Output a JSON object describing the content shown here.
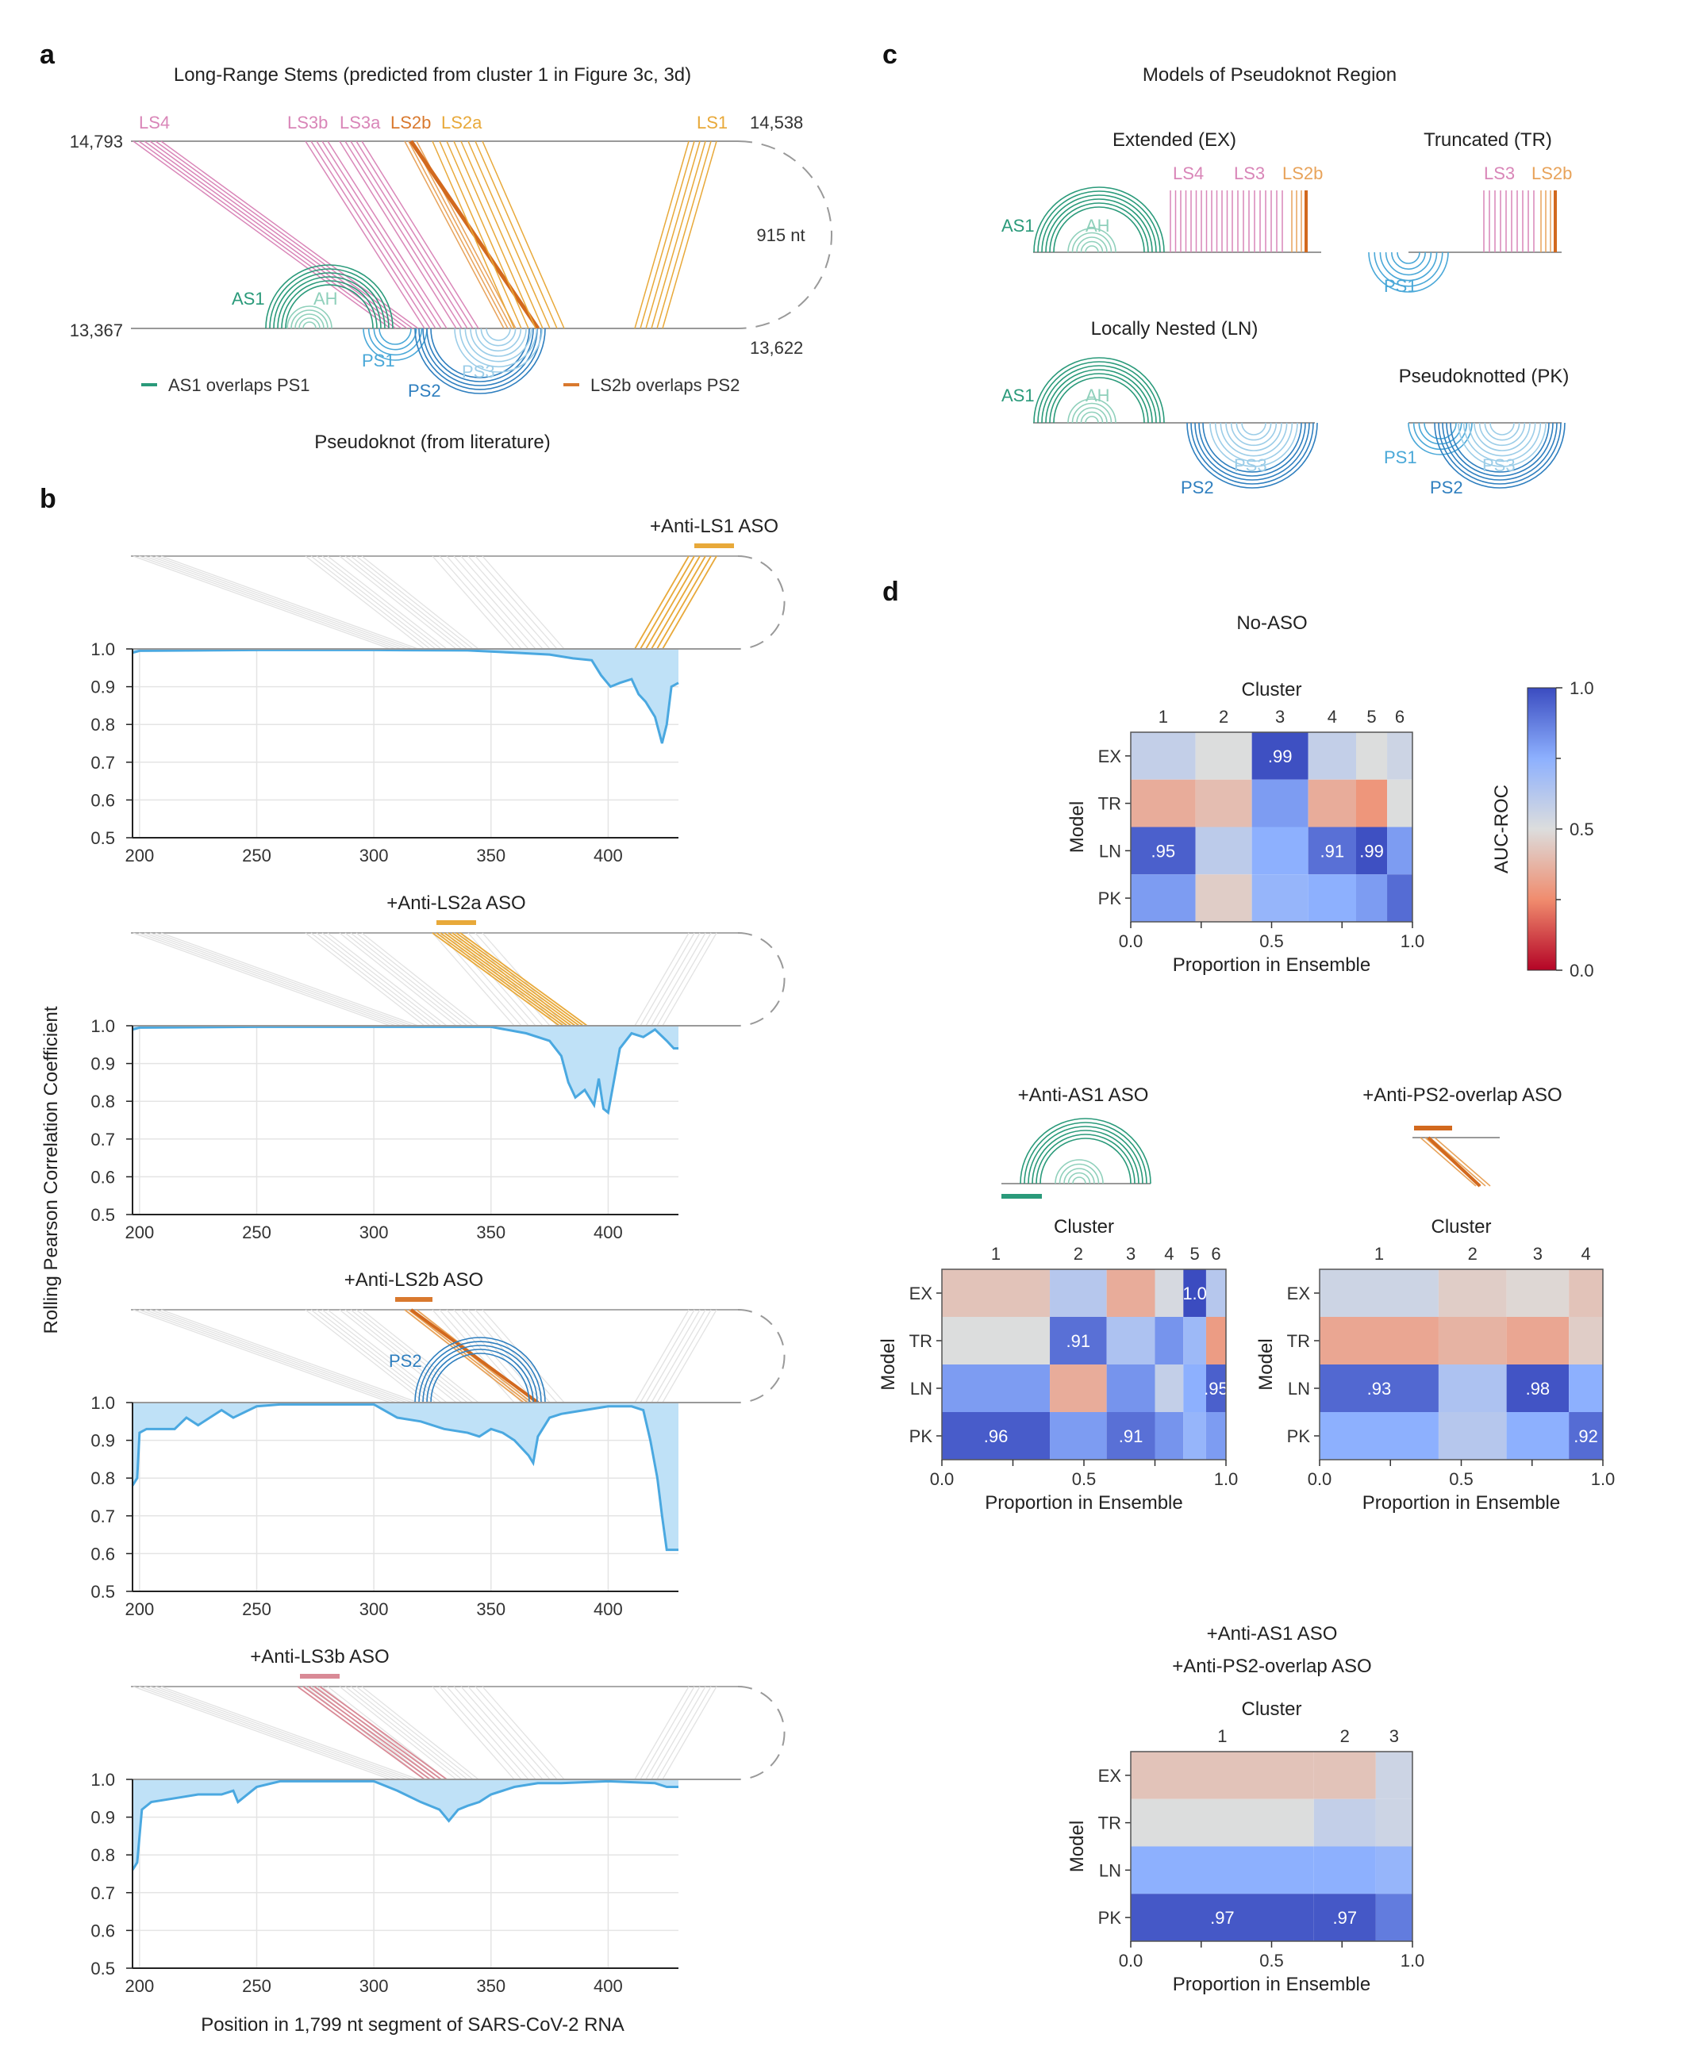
{
  "panel_a": {
    "letter": "a",
    "title": "Long-Range Stems (predicted from cluster 1 in Figure 3c, 3d)",
    "coord_top_left": "14,793",
    "coord_top_right": "14,538",
    "coord_bottom_left": "13,367",
    "coord_bottom_right": "13,622",
    "loop_length": "915 nt",
    "stem_labels": {
      "ls4": "LS4",
      "ls3b": "LS3b",
      "ls3a": "LS3a",
      "ls2b": "LS2b",
      "ls2a": "LS2a",
      "ls1": "LS1"
    },
    "arc_labels": {
      "as1": "AS1",
      "ah": "AH",
      "ps1": "PS1",
      "ps2": "PS2",
      "ps3": "PS3"
    },
    "legend_as1": "AS1 overlaps PS1",
    "legend_ls2b": "LS2b overlaps PS2",
    "caption": "Pseudoknot (from literature)"
  },
  "panel_b": {
    "letter": "b",
    "ylabel": "Rolling Pearson Correlation Coefficient",
    "xlabel": "Position in 1,799 nt segment of SARS-CoV-2 RNA",
    "ps2_label": "PS2",
    "charts": [
      {
        "title": "+Anti-LS1 ASO"
      },
      {
        "title": "+Anti-LS2a ASO"
      },
      {
        "title": "+Anti-LS2b ASO"
      },
      {
        "title": "+Anti-LS3b ASO"
      }
    ]
  },
  "panel_c": {
    "letter": "c",
    "title": "Models of Pseudoknot Region",
    "ex": {
      "title": "Extended (EX)",
      "labels": [
        "AS1",
        "AH",
        "LS4",
        "LS3",
        "LS2b"
      ]
    },
    "tr": {
      "title": "Truncated (TR)",
      "labels": [
        "PS1",
        "LS3",
        "LS2b"
      ]
    },
    "ln": {
      "title": "Locally Nested (LN)",
      "labels": [
        "AS1",
        "AH",
        "PS2",
        "PS3"
      ]
    },
    "pk": {
      "title": "Pseudoknotted (PK)",
      "labels": [
        "PS1",
        "PS2",
        "PS3"
      ]
    }
  },
  "panel_d": {
    "letter": "d",
    "cluster_label": "Cluster",
    "model_label": "Model",
    "prop_label": "Proportion in Ensemble",
    "colorbar": {
      "label": "AUC-ROC",
      "ticks": [
        "1.0",
        "0.5",
        "0.0"
      ]
    },
    "titles": {
      "no_aso": "No-ASO",
      "as1": "+Anti-AS1 ASO",
      "ps2": "+Anti-PS2-overlap ASO",
      "both_line1": "+Anti-AS1 ASO",
      "both_line2": "+Anti-PS2-overlap ASO"
    }
  },
  "chart_data": [
    {
      "type": "area",
      "title": "+Anti-LS1 ASO",
      "xlabel": "Position in 1,799 nt segment of SARS-CoV-2 RNA",
      "ylabel": "Rolling Pearson Correlation Coefficient",
      "xlim": [
        197,
        430
      ],
      "ylim": [
        0.5,
        1.0
      ],
      "x_ticks": [
        200,
        250,
        300,
        350,
        400
      ],
      "y_ticks": [
        0.5,
        0.6,
        0.7,
        0.8,
        0.9,
        1.0
      ],
      "grid": true,
      "x": [
        197,
        200,
        250,
        300,
        340,
        360,
        375,
        385,
        393,
        397,
        401,
        405,
        410,
        413,
        416,
        420,
        423,
        425,
        427,
        430
      ],
      "y": [
        0.99,
        0.995,
        0.997,
        0.997,
        0.996,
        0.99,
        0.985,
        0.975,
        0.97,
        0.93,
        0.9,
        0.91,
        0.92,
        0.88,
        0.86,
        0.82,
        0.75,
        0.8,
        0.9,
        0.91
      ]
    },
    {
      "type": "area",
      "title": "+Anti-LS2a ASO",
      "xlabel": "Position in 1,799 nt segment of SARS-CoV-2 RNA",
      "ylabel": "Rolling Pearson Correlation Coefficient",
      "xlim": [
        197,
        430
      ],
      "ylim": [
        0.5,
        1.0
      ],
      "x_ticks": [
        200,
        250,
        300,
        350,
        400
      ],
      "y_ticks": [
        0.5,
        0.6,
        0.7,
        0.8,
        0.9,
        1.0
      ],
      "grid": true,
      "x": [
        197,
        200,
        250,
        300,
        350,
        365,
        375,
        380,
        383,
        386,
        390,
        394,
        396,
        398,
        400,
        405,
        410,
        415,
        420,
        425,
        428,
        430
      ],
      "y": [
        0.99,
        0.995,
        0.997,
        0.997,
        0.997,
        0.98,
        0.96,
        0.92,
        0.85,
        0.81,
        0.83,
        0.79,
        0.86,
        0.78,
        0.77,
        0.94,
        0.98,
        0.97,
        0.99,
        0.96,
        0.94,
        0.94
      ]
    },
    {
      "type": "area",
      "title": "+Anti-LS2b ASO",
      "xlabel": "Position in 1,799 nt segment of SARS-CoV-2 RNA",
      "ylabel": "Rolling Pearson Correlation Coefficient",
      "xlim": [
        197,
        430
      ],
      "ylim": [
        0.5,
        1.0
      ],
      "x_ticks": [
        200,
        250,
        300,
        350,
        400
      ],
      "y_ticks": [
        0.5,
        0.6,
        0.7,
        0.8,
        0.9,
        1.0
      ],
      "grid": true,
      "x": [
        197,
        199,
        200,
        203,
        215,
        220,
        225,
        230,
        235,
        240,
        250,
        260,
        300,
        310,
        320,
        330,
        340,
        345,
        350,
        355,
        360,
        363,
        366,
        368,
        370,
        375,
        380,
        390,
        400,
        410,
        415,
        418,
        421,
        423,
        425,
        430
      ],
      "y": [
        0.78,
        0.8,
        0.92,
        0.93,
        0.93,
        0.96,
        0.94,
        0.96,
        0.98,
        0.96,
        0.99,
        0.995,
        0.995,
        0.96,
        0.95,
        0.93,
        0.92,
        0.91,
        0.93,
        0.92,
        0.9,
        0.88,
        0.86,
        0.84,
        0.91,
        0.96,
        0.97,
        0.98,
        0.99,
        0.99,
        0.98,
        0.9,
        0.8,
        0.7,
        0.61,
        0.61
      ]
    },
    {
      "type": "area",
      "title": "+Anti-LS3b ASO",
      "xlabel": "Position in 1,799 nt segment of SARS-CoV-2 RNA",
      "ylabel": "Rolling Pearson Correlation Coefficient",
      "xlim": [
        197,
        430
      ],
      "ylim": [
        0.5,
        1.0
      ],
      "x_ticks": [
        200,
        250,
        300,
        350,
        400
      ],
      "y_ticks": [
        0.5,
        0.6,
        0.7,
        0.8,
        0.9,
        1.0
      ],
      "grid": true,
      "x": [
        197,
        199,
        201,
        205,
        215,
        225,
        235,
        240,
        242,
        250,
        260,
        300,
        310,
        320,
        328,
        332,
        336,
        340,
        345,
        350,
        360,
        370,
        380,
        400,
        420,
        425,
        430
      ],
      "y": [
        0.76,
        0.78,
        0.92,
        0.94,
        0.95,
        0.96,
        0.96,
        0.97,
        0.94,
        0.98,
        0.995,
        0.995,
        0.97,
        0.94,
        0.92,
        0.89,
        0.92,
        0.93,
        0.94,
        0.96,
        0.98,
        0.99,
        0.99,
        0.995,
        0.99,
        0.98,
        0.98
      ]
    },
    {
      "type": "heatmap",
      "title": "No-ASO",
      "xlabel": "Proportion in Ensemble",
      "ylabel": "Model",
      "rows": [
        "EX",
        "TR",
        "LN",
        "PK"
      ],
      "cluster_labels": [
        "1",
        "2",
        "3",
        "4",
        "5",
        "6"
      ],
      "cluster_proportions": [
        0.23,
        0.2,
        0.2,
        0.17,
        0.11,
        0.09
      ],
      "x_ticks": [
        "0.0",
        "0.5",
        "1.0"
      ],
      "values": [
        [
          0.58,
          0.5,
          0.99,
          0.58,
          0.5,
          0.55
        ],
        [
          0.35,
          0.4,
          0.8,
          0.35,
          0.28,
          0.5
        ],
        [
          0.95,
          0.6,
          0.75,
          0.91,
          0.99,
          0.8
        ],
        [
          0.8,
          0.45,
          0.72,
          0.75,
          0.8,
          0.92
        ]
      ],
      "cell_labels": [
        [
          "",
          "",
          ".99",
          "",
          "",
          ""
        ],
        [
          "",
          "",
          "",
          "",
          "",
          ""
        ],
        [
          ".95",
          "",
          "",
          ".91",
          ".99",
          ""
        ],
        [
          "",
          "",
          "",
          "",
          "",
          ""
        ]
      ]
    },
    {
      "type": "heatmap",
      "title": "+Anti-AS1 ASO",
      "xlabel": "Proportion in Ensemble",
      "ylabel": "Model",
      "rows": [
        "EX",
        "TR",
        "LN",
        "PK"
      ],
      "cluster_labels": [
        "1",
        "2",
        "3",
        "4",
        "5",
        "6"
      ],
      "cluster_proportions": [
        0.38,
        0.2,
        0.17,
        0.1,
        0.08,
        0.07
      ],
      "x_ticks": [
        "0.0",
        "0.5",
        "1.0"
      ],
      "values": [
        [
          0.42,
          0.62,
          0.35,
          0.52,
          1.0,
          0.62
        ],
        [
          0.5,
          0.91,
          0.65,
          0.82,
          0.7,
          0.3
        ],
        [
          0.8,
          0.35,
          0.82,
          0.58,
          0.75,
          0.95
        ],
        [
          0.96,
          0.8,
          0.91,
          0.82,
          0.72,
          0.8
        ]
      ],
      "cell_labels": [
        [
          "",
          "",
          "",
          "",
          "1.0",
          ""
        ],
        [
          "",
          ".91",
          "",
          "",
          "",
          ""
        ],
        [
          "",
          "",
          "",
          "",
          "",
          ".95"
        ],
        [
          ".96",
          "",
          ".91",
          "",
          "",
          ""
        ]
      ]
    },
    {
      "type": "heatmap",
      "title": "+Anti-PS2-overlap ASO",
      "xlabel": "Proportion in Ensemble",
      "ylabel": "Model",
      "rows": [
        "EX",
        "TR",
        "LN",
        "PK"
      ],
      "cluster_labels": [
        "1",
        "2",
        "3",
        "4"
      ],
      "cluster_proportions": [
        0.42,
        0.24,
        0.22,
        0.12
      ],
      "x_ticks": [
        "0.0",
        "0.5",
        "1.0"
      ],
      "values": [
        [
          0.55,
          0.45,
          0.48,
          0.42
        ],
        [
          0.33,
          0.37,
          0.33,
          0.45
        ],
        [
          0.93,
          0.65,
          0.98,
          0.75
        ],
        [
          0.75,
          0.62,
          0.75,
          0.92
        ]
      ],
      "cell_labels": [
        [
          "",
          "",
          "",
          ""
        ],
        [
          "",
          "",
          "",
          ""
        ],
        [
          ".93",
          "",
          ".98",
          ""
        ],
        [
          "",
          "",
          "",
          ".92"
        ]
      ]
    },
    {
      "type": "heatmap",
      "title": "+Anti-AS1 ASO +Anti-PS2-overlap ASO",
      "xlabel": "Proportion in Ensemble",
      "ylabel": "Model",
      "rows": [
        "EX",
        "TR",
        "LN",
        "PK"
      ],
      "cluster_labels": [
        "1",
        "2",
        "3"
      ],
      "cluster_proportions": [
        0.65,
        0.22,
        0.13
      ],
      "x_ticks": [
        "0.0",
        "0.5",
        "1.0"
      ],
      "values": [
        [
          0.42,
          0.42,
          0.55
        ],
        [
          0.5,
          0.58,
          0.55
        ],
        [
          0.75,
          0.75,
          0.72
        ],
        [
          0.97,
          0.97,
          0.88
        ]
      ],
      "cell_labels": [
        [
          "",
          "",
          ""
        ],
        [
          "",
          "",
          ""
        ],
        [
          "",
          "",
          ""
        ],
        [
          ".97",
          ".97",
          ""
        ]
      ]
    }
  ]
}
